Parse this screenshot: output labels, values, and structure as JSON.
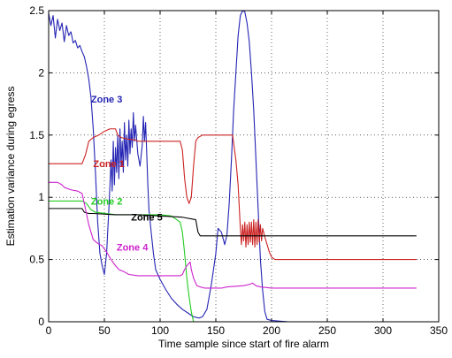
{
  "chart_data": {
    "type": "line",
    "title": "",
    "xlabel": "Time sample since start of fire alarm",
    "ylabel": "Estimation variance during egress",
    "xlim": [
      0,
      350
    ],
    "ylim": [
      0,
      2.5
    ],
    "xticks": [
      0,
      50,
      100,
      150,
      200,
      250,
      300,
      350
    ],
    "yticks": [
      0,
      0.5,
      1,
      1.5,
      2,
      2.5
    ],
    "xtick_labels": [
      "0",
      "50",
      "100",
      "150",
      "200",
      "250",
      "300",
      "350"
    ],
    "ytick_labels": [
      "0",
      "0.5",
      "1",
      "1.5",
      "2",
      "2.5"
    ],
    "grid": true,
    "legend": "none",
    "series": [
      {
        "name": "Zone 3",
        "color": "#2424b4",
        "label_at": [
          38,
          1.79
        ],
        "points": [
          [
            0,
            2.48
          ],
          [
            2,
            2.38
          ],
          [
            4,
            2.46
          ],
          [
            6,
            2.28
          ],
          [
            8,
            2.43
          ],
          [
            10,
            2.34
          ],
          [
            12,
            2.4
          ],
          [
            14,
            2.25
          ],
          [
            16,
            2.38
          ],
          [
            18,
            2.3
          ],
          [
            20,
            2.33
          ],
          [
            22,
            2.24
          ],
          [
            24,
            2.26
          ],
          [
            26,
            2.2
          ],
          [
            28,
            2.22
          ],
          [
            30,
            2.17
          ],
          [
            32,
            2.13
          ],
          [
            34,
            2.05
          ],
          [
            36,
            1.95
          ],
          [
            38,
            1.8
          ],
          [
            40,
            1.55
          ],
          [
            42,
            1.2
          ],
          [
            44,
            0.8
          ],
          [
            46,
            0.55
          ],
          [
            48,
            0.45
          ],
          [
            50,
            0.38
          ],
          [
            52,
            0.55
          ],
          [
            54,
            0.9
          ],
          [
            56,
            1.3
          ],
          [
            57,
            1.05
          ],
          [
            58,
            1.45
          ],
          [
            59,
            1.1
          ],
          [
            60,
            1.4
          ],
          [
            61,
            1.2
          ],
          [
            62,
            1.5
          ],
          [
            63,
            1.15
          ],
          [
            64,
            1.55
          ],
          [
            65,
            1.25
          ],
          [
            66,
            1.45
          ],
          [
            67,
            1.2
          ],
          [
            68,
            1.6
          ],
          [
            69,
            1.3
          ],
          [
            70,
            1.5
          ],
          [
            71,
            1.25
          ],
          [
            72,
            1.62
          ],
          [
            73,
            1.35
          ],
          [
            74,
            1.55
          ],
          [
            75,
            1.4
          ],
          [
            76,
            1.68
          ],
          [
            77,
            1.45
          ],
          [
            78,
            1.58
          ],
          [
            80,
            1.35
          ],
          [
            82,
            1.25
          ],
          [
            84,
            1.42
          ],
          [
            85,
            1.65
          ],
          [
            86,
            1.45
          ],
          [
            87,
            1.6
          ],
          [
            88,
            1.35
          ],
          [
            89,
            1.1
          ],
          [
            90,
            0.9
          ],
          [
            92,
            0.72
          ],
          [
            94,
            0.55
          ],
          [
            96,
            0.42
          ],
          [
            100,
            0.34
          ],
          [
            105,
            0.26
          ],
          [
            110,
            0.19
          ],
          [
            115,
            0.14
          ],
          [
            120,
            0.1
          ],
          [
            125,
            0.07
          ],
          [
            130,
            0.04
          ],
          [
            135,
            0.03
          ],
          [
            138,
            0.04
          ],
          [
            142,
            0.1
          ],
          [
            146,
            0.3
          ],
          [
            150,
            0.55
          ],
          [
            152,
            0.75
          ],
          [
            155,
            0.72
          ],
          [
            158,
            0.62
          ],
          [
            160,
            0.7
          ],
          [
            162,
            0.95
          ],
          [
            164,
            1.3
          ],
          [
            166,
            1.7
          ],
          [
            168,
            2.0
          ],
          [
            170,
            2.3
          ],
          [
            172,
            2.46
          ],
          [
            174,
            2.5
          ],
          [
            176,
            2.49
          ],
          [
            178,
            2.4
          ],
          [
            180,
            2.25
          ],
          [
            182,
            2.0
          ],
          [
            184,
            1.7
          ],
          [
            186,
            1.3
          ],
          [
            188,
            0.9
          ],
          [
            190,
            0.5
          ],
          [
            192,
            0.25
          ],
          [
            194,
            0.08
          ],
          [
            196,
            0.02
          ],
          [
            200,
            0.01
          ],
          [
            215,
            0.0
          ]
        ]
      },
      {
        "name": "Zone 1",
        "color": "#cc2222",
        "label_at": [
          40,
          1.27
        ],
        "points": [
          [
            0,
            1.27
          ],
          [
            30,
            1.27
          ],
          [
            33,
            1.34
          ],
          [
            36,
            1.45
          ],
          [
            40,
            1.48
          ],
          [
            45,
            1.5
          ],
          [
            50,
            1.53
          ],
          [
            55,
            1.55
          ],
          [
            60,
            1.55
          ],
          [
            62,
            1.5
          ],
          [
            65,
            1.48
          ],
          [
            70,
            1.47
          ],
          [
            78,
            1.46
          ],
          [
            80,
            1.45
          ],
          [
            100,
            1.45
          ],
          [
            118,
            1.45
          ],
          [
            120,
            1.38
          ],
          [
            122,
            1.15
          ],
          [
            124,
            1.0
          ],
          [
            126,
            0.95
          ],
          [
            128,
            1.0
          ],
          [
            130,
            1.25
          ],
          [
            132,
            1.45
          ],
          [
            134,
            1.48
          ],
          [
            138,
            1.5
          ],
          [
            155,
            1.5
          ],
          [
            165,
            1.5
          ],
          [
            168,
            1.3
          ],
          [
            170,
            1.1
          ],
          [
            172,
            0.75
          ],
          [
            173,
            0.62
          ],
          [
            174,
            0.78
          ],
          [
            175,
            0.65
          ],
          [
            176,
            0.8
          ],
          [
            177,
            0.6
          ],
          [
            178,
            0.78
          ],
          [
            179,
            0.62
          ],
          [
            180,
            0.8
          ],
          [
            181,
            0.64
          ],
          [
            182,
            0.8
          ],
          [
            183,
            0.62
          ],
          [
            184,
            0.82
          ],
          [
            185,
            0.6
          ],
          [
            186,
            0.8
          ],
          [
            187,
            0.62
          ],
          [
            188,
            0.82
          ],
          [
            189,
            0.64
          ],
          [
            190,
            0.78
          ],
          [
            191,
            0.65
          ],
          [
            192,
            0.75
          ],
          [
            194,
            0.68
          ],
          [
            196,
            0.62
          ],
          [
            198,
            0.56
          ],
          [
            200,
            0.52
          ],
          [
            203,
            0.5
          ],
          [
            210,
            0.5
          ],
          [
            330,
            0.5
          ]
        ]
      },
      {
        "name": "Zone 2",
        "color": "#22cc22",
        "label_at": [
          38,
          0.97
        ],
        "points": [
          [
            0,
            0.97
          ],
          [
            30,
            0.97
          ],
          [
            34,
            0.95
          ],
          [
            38,
            0.9
          ],
          [
            42,
            0.88
          ],
          [
            60,
            0.86
          ],
          [
            80,
            0.86
          ],
          [
            100,
            0.86
          ],
          [
            110,
            0.85
          ],
          [
            115,
            0.82
          ],
          [
            118,
            0.8
          ],
          [
            120,
            0.72
          ],
          [
            122,
            0.55
          ],
          [
            124,
            0.35
          ],
          [
            126,
            0.2
          ],
          [
            128,
            0.08
          ],
          [
            130,
            0.0
          ]
        ]
      },
      {
        "name": "Zone 5",
        "color": "#000000",
        "label_at": [
          74,
          0.84
        ],
        "points": [
          [
            0,
            0.91
          ],
          [
            30,
            0.91
          ],
          [
            32,
            0.88
          ],
          [
            36,
            0.87
          ],
          [
            40,
            0.87
          ],
          [
            60,
            0.86
          ],
          [
            80,
            0.86
          ],
          [
            100,
            0.85
          ],
          [
            120,
            0.84
          ],
          [
            132,
            0.82
          ],
          [
            134,
            0.72
          ],
          [
            136,
            0.69
          ],
          [
            150,
            0.69
          ],
          [
            200,
            0.69
          ],
          [
            330,
            0.69
          ]
        ]
      },
      {
        "name": "Zone 4",
        "color": "#cc22cc",
        "label_at": [
          61,
          0.6
        ],
        "points": [
          [
            0,
            1.12
          ],
          [
            8,
            1.12
          ],
          [
            12,
            1.1
          ],
          [
            14,
            1.08
          ],
          [
            20,
            1.06
          ],
          [
            26,
            1.05
          ],
          [
            30,
            1.03
          ],
          [
            32,
            0.95
          ],
          [
            36,
            0.78
          ],
          [
            40,
            0.66
          ],
          [
            44,
            0.63
          ],
          [
            48,
            0.61
          ],
          [
            52,
            0.56
          ],
          [
            56,
            0.5
          ],
          [
            60,
            0.45
          ],
          [
            63,
            0.42
          ],
          [
            68,
            0.4
          ],
          [
            72,
            0.38
          ],
          [
            80,
            0.37
          ],
          [
            100,
            0.37
          ],
          [
            118,
            0.37
          ],
          [
            120,
            0.38
          ],
          [
            122,
            0.42
          ],
          [
            124,
            0.45
          ],
          [
            127,
            0.48
          ],
          [
            128,
            0.42
          ],
          [
            130,
            0.35
          ],
          [
            133,
            0.29
          ],
          [
            136,
            0.28
          ],
          [
            140,
            0.27
          ],
          [
            155,
            0.27
          ],
          [
            160,
            0.28
          ],
          [
            175,
            0.29
          ],
          [
            180,
            0.3
          ],
          [
            183,
            0.31
          ],
          [
            186,
            0.29
          ],
          [
            190,
            0.28
          ],
          [
            200,
            0.27
          ],
          [
            330,
            0.27
          ]
        ]
      }
    ]
  }
}
